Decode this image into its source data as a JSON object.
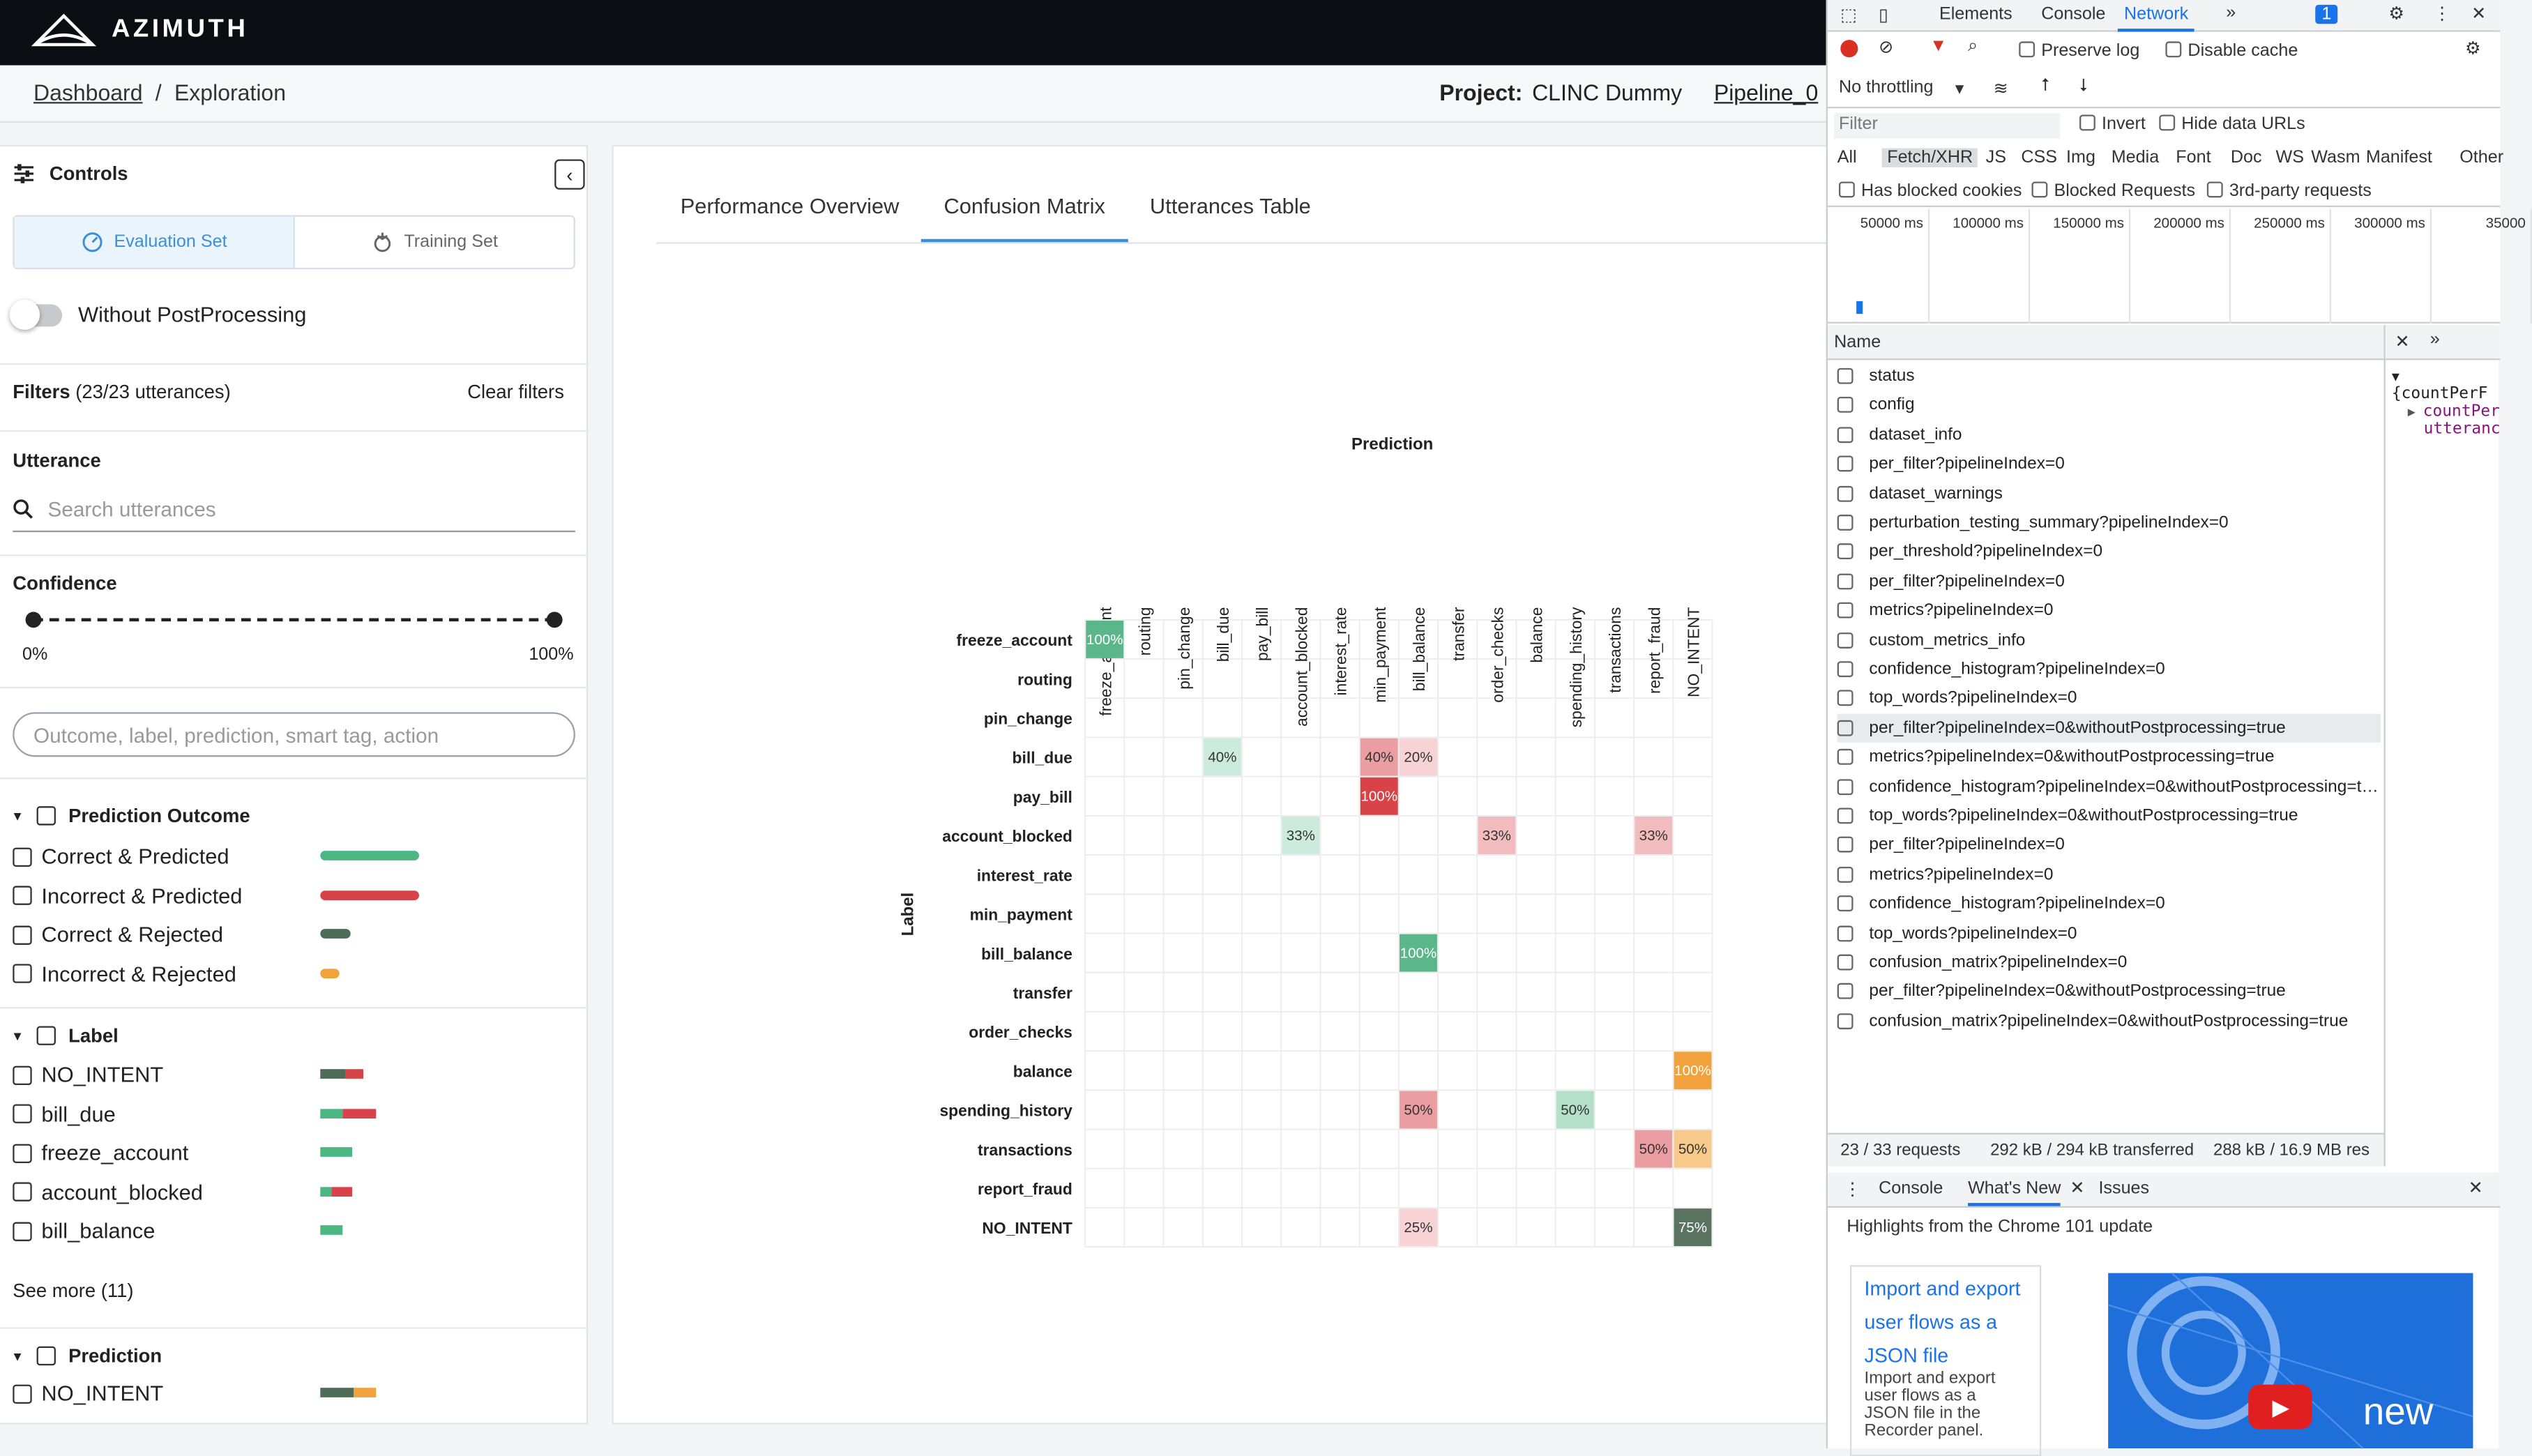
{
  "app": {
    "brand": "AZIMUTH"
  },
  "breadcrumb": {
    "home": "Dashboard",
    "sep": "/",
    "current": "Exploration"
  },
  "project": {
    "label": "Project:",
    "name": "CLINC Dummy",
    "pipeline": "Pipeline_0"
  },
  "controls": {
    "title": "Controls",
    "tabs": [
      "Evaluation Set",
      "Training Set"
    ],
    "toggle_label": "Without PostProcessing",
    "filters_label": "Filters",
    "filters_count": "(23/23 utterances)",
    "clear_label": "Clear filters",
    "utterance_title": "Utterance",
    "search_placeholder": "Search utterances",
    "confidence_title": "Confidence",
    "conf_min": "0%",
    "conf_max": "100%",
    "smart_placeholder": "Outcome, label, prediction, smart tag, action",
    "outcome": {
      "title": "Prediction Outcome",
      "items": [
        {
          "label": "Correct & Predicted",
          "color": "#4cb782",
          "fraction": 1.0
        },
        {
          "label": "Incorrect & Predicted",
          "color": "#d8434a",
          "fraction": 1.0
        },
        {
          "label": "Correct & Rejected",
          "color": "#4d6b57",
          "fraction": 0.3
        },
        {
          "label": "Incorrect & Rejected",
          "color": "#f2a23c",
          "fraction": 0.2
        }
      ]
    },
    "label_group": {
      "title": "Label",
      "items": [
        {
          "label": "NO_INTENT",
          "segments": [
            [
              "#4d6b57",
              0.6
            ],
            [
              "#d8434a",
              0.4
            ]
          ],
          "fraction": 0.44
        },
        {
          "label": "bill_due",
          "segments": [
            [
              "#4cb782",
              0.4
            ],
            [
              "#d8434a",
              0.6
            ]
          ],
          "fraction": 0.56
        },
        {
          "label": "freeze_account",
          "segments": [
            [
              "#4cb782",
              1
            ]
          ],
          "fraction": 0.33
        },
        {
          "label": "account_blocked",
          "segments": [
            [
              "#4cb782",
              0.33
            ],
            [
              "#d8434a",
              0.67
            ]
          ],
          "fraction": 0.33
        },
        {
          "label": "bill_balance",
          "segments": [
            [
              "#4cb782",
              1
            ]
          ],
          "fraction": 0.22
        }
      ],
      "see_more": "See more (11)"
    },
    "prediction_group": {
      "title": "Prediction",
      "items": [
        {
          "label": "NO_INTENT",
          "segments": [
            [
              "#4d6b57",
              0.6
            ],
            [
              "#f2a23c",
              0.4
            ]
          ],
          "fraction": 0.56
        }
      ]
    }
  },
  "main": {
    "tabs": [
      "Performance Overview",
      "Confusion Matrix",
      "Utterances Table"
    ],
    "active_tab": 1
  },
  "chart_data": {
    "type": "heatmap",
    "title": "",
    "xlabel": "Prediction",
    "ylabel": "Label",
    "x": [
      "freeze_account",
      "routing",
      "pin_change",
      "bill_due",
      "pay_bill",
      "account_blocked",
      "interest_rate",
      "min_payment",
      "bill_balance",
      "transfer",
      "order_checks",
      "balance",
      "spending_history",
      "transactions",
      "report_fraud",
      "NO_INTENT"
    ],
    "y": [
      "freeze_account",
      "routing",
      "pin_change",
      "bill_due",
      "pay_bill",
      "account_blocked",
      "interest_rate",
      "min_payment",
      "bill_balance",
      "transfer",
      "order_checks",
      "balance",
      "spending_history",
      "transactions",
      "report_fraud",
      "NO_INTENT"
    ],
    "cells": [
      {
        "row": 0,
        "col": 0,
        "value": 100
      },
      {
        "row": 3,
        "col": 3,
        "value": 40
      },
      {
        "row": 3,
        "col": 7,
        "value": 40
      },
      {
        "row": 3,
        "col": 8,
        "value": 20
      },
      {
        "row": 4,
        "col": 7,
        "value": 100
      },
      {
        "row": 5,
        "col": 5,
        "value": 33
      },
      {
        "row": 5,
        "col": 10,
        "value": 33
      },
      {
        "row": 5,
        "col": 14,
        "value": 33
      },
      {
        "row": 8,
        "col": 8,
        "value": 100
      },
      {
        "row": 11,
        "col": 15,
        "value": 100
      },
      {
        "row": 12,
        "col": 8,
        "value": 50
      },
      {
        "row": 12,
        "col": 12,
        "value": 50
      },
      {
        "row": 13,
        "col": 14,
        "value": 50
      },
      {
        "row": 13,
        "col": 15,
        "value": 50
      },
      {
        "row": 15,
        "col": 8,
        "value": 25
      },
      {
        "row": 15,
        "col": 15,
        "value": 75
      }
    ],
    "value_unit": "%"
  },
  "devtools": {
    "tabs": [
      "Elements",
      "Console",
      "Network"
    ],
    "active": "Network",
    "badge": "1",
    "preserve_log": "Preserve log",
    "disable_cache": "Disable cache",
    "throttling": "No throttling",
    "filter_placeholder": "Filter",
    "invert": "Invert",
    "hide_data_urls": "Hide data URLs",
    "types": [
      "All",
      "Fetch/XHR",
      "JS",
      "CSS",
      "Img",
      "Media",
      "Font",
      "Doc",
      "WS",
      "Wasm",
      "Manifest",
      "Other"
    ],
    "has_blocked": "Has blocked cookies",
    "blocked_requests": "Blocked Requests",
    "third_party": "3rd-party requests",
    "timeline": [
      "50000 ms",
      "100000 ms",
      "150000 ms",
      "200000 ms",
      "250000 ms",
      "300000 ms",
      "35000"
    ],
    "name_col": "Name",
    "requests": [
      "status",
      "config",
      "dataset_info",
      "per_filter?pipelineIndex=0",
      "dataset_warnings",
      "perturbation_testing_summary?pipelineIndex=0",
      "per_threshold?pipelineIndex=0",
      "per_filter?pipelineIndex=0",
      "metrics?pipelineIndex=0",
      "custom_metrics_info",
      "confidence_histogram?pipelineIndex=0",
      "top_words?pipelineIndex=0",
      "per_filter?pipelineIndex=0&withoutPostprocessing=true",
      "metrics?pipelineIndex=0&withoutPostprocessing=true",
      "confidence_histogram?pipelineIndex=0&withoutPostprocessing=t…",
      "top_words?pipelineIndex=0&withoutPostprocessing=true",
      "per_filter?pipelineIndex=0",
      "metrics?pipelineIndex=0",
      "confidence_histogram?pipelineIndex=0",
      "top_words?pipelineIndex=0",
      "confusion_matrix?pipelineIndex=0",
      "per_filter?pipelineIndex=0&withoutPostprocessing=true",
      "confusion_matrix?pipelineIndex=0&withoutPostprocessing=true"
    ],
    "highlight": 12,
    "preview": [
      "{countPerF",
      "countPer",
      "utteranc"
    ],
    "status": {
      "requests": "23 / 33 requests",
      "transferred": "292 kB / 294 kB transferred",
      "resources": "288 kB / 16.9 MB res"
    },
    "drawer_tabs": [
      "Console",
      "What's New",
      "Issues"
    ],
    "highlights": "Highlights from the Chrome 101 update",
    "card_title": "Import and export user flows as a JSON file",
    "card_body": "Import and export user flows as a JSON file in the Recorder panel.",
    "video_word": "new"
  }
}
